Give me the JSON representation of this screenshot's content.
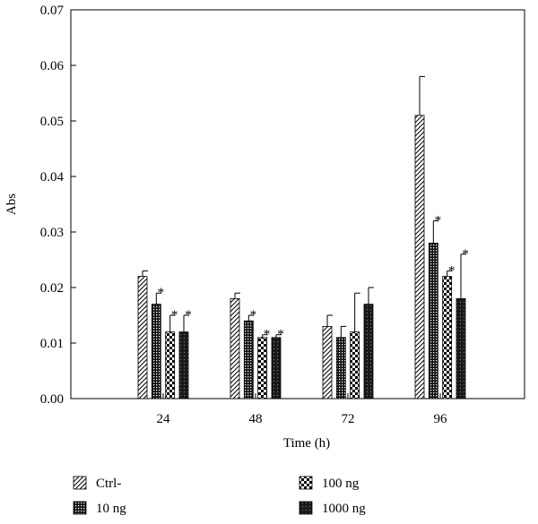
{
  "chart_data": {
    "type": "bar",
    "xlabel": "Time (h)",
    "ylabel": "Abs",
    "categories": [
      "24",
      "48",
      "72",
      "96"
    ],
    "ylim": [
      0,
      0.07
    ],
    "yticks": [
      "0.00",
      "0.01",
      "0.02",
      "0.03",
      "0.04",
      "0.05",
      "0.06",
      "0.07"
    ],
    "grid": false,
    "legend_position": "bottom",
    "significance_marker": "*",
    "series": [
      {
        "name": "Ctrl-",
        "pattern": "diagonal-hatch",
        "values": [
          0.022,
          0.018,
          0.013,
          0.051
        ],
        "errors": [
          0.001,
          0.001,
          0.002,
          0.007
        ],
        "significant": [
          false,
          false,
          false,
          false
        ]
      },
      {
        "name": "10 ng",
        "pattern": "dense-grid",
        "values": [
          0.017,
          0.014,
          0.011,
          0.028
        ],
        "errors": [
          0.002,
          0.001,
          0.002,
          0.004
        ],
        "significant": [
          true,
          true,
          false,
          true
        ]
      },
      {
        "name": "100 ng",
        "pattern": "checkerboard",
        "values": [
          0.012,
          0.011,
          0.012,
          0.022
        ],
        "errors": [
          0.003,
          0.0005,
          0.007,
          0.001
        ],
        "significant": [
          true,
          true,
          false,
          true
        ]
      },
      {
        "name": "1000 ng",
        "pattern": "dark-dots",
        "values": [
          0.012,
          0.011,
          0.017,
          0.018
        ],
        "errors": [
          0.003,
          0.0005,
          0.003,
          0.008
        ],
        "significant": [
          true,
          true,
          false,
          true
        ]
      }
    ]
  }
}
